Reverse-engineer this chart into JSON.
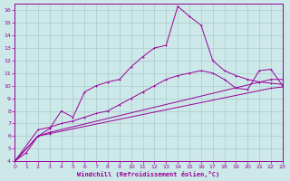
{
  "xlabel": "Windchill (Refroidissement éolien,°C)",
  "bg_color": "#cce8e8",
  "grid_color": "#aacccc",
  "line_color": "#990099",
  "xlim": [
    0,
    23
  ],
  "ylim": [
    4,
    16.5
  ],
  "xticks": [
    0,
    1,
    2,
    3,
    4,
    5,
    6,
    7,
    8,
    9,
    10,
    11,
    12,
    13,
    14,
    15,
    16,
    17,
    18,
    19,
    20,
    21,
    22,
    23
  ],
  "yticks": [
    4,
    5,
    6,
    7,
    8,
    9,
    10,
    11,
    12,
    13,
    14,
    15,
    16
  ],
  "line_peaked_x": [
    0,
    1,
    2,
    3,
    4,
    5,
    6,
    7,
    8,
    9,
    10,
    11,
    12,
    13,
    14,
    15,
    16,
    17,
    18,
    19,
    20,
    21,
    22,
    23
  ],
  "line_peaked_y": [
    4.0,
    4.7,
    6.0,
    6.6,
    8.0,
    7.5,
    9.5,
    10.0,
    10.3,
    10.5,
    11.5,
    12.3,
    13.0,
    13.2,
    16.3,
    15.5,
    14.8,
    12.0,
    11.2,
    10.8,
    10.5,
    10.3,
    10.2,
    10.1
  ],
  "line_high_x": [
    0,
    2,
    3,
    4,
    5,
    6,
    7,
    8,
    9,
    10,
    11,
    12,
    13,
    14,
    15,
    16,
    17,
    18,
    19,
    20,
    21,
    22,
    23
  ],
  "line_high_y": [
    4.0,
    6.5,
    6.7,
    7.0,
    7.2,
    7.5,
    7.8,
    8.0,
    8.5,
    9.0,
    9.5,
    10.0,
    10.5,
    10.8,
    11.0,
    11.2,
    11.0,
    10.5,
    9.8,
    9.7,
    11.2,
    11.3,
    10.0
  ],
  "line_mid_x": [
    0,
    2,
    3,
    22,
    23
  ],
  "line_mid_y": [
    4.0,
    6.0,
    6.3,
    10.5,
    10.5
  ],
  "line_low_x": [
    0,
    2,
    3,
    22,
    23
  ],
  "line_low_y": [
    4.0,
    6.0,
    6.2,
    9.8,
    9.9
  ]
}
